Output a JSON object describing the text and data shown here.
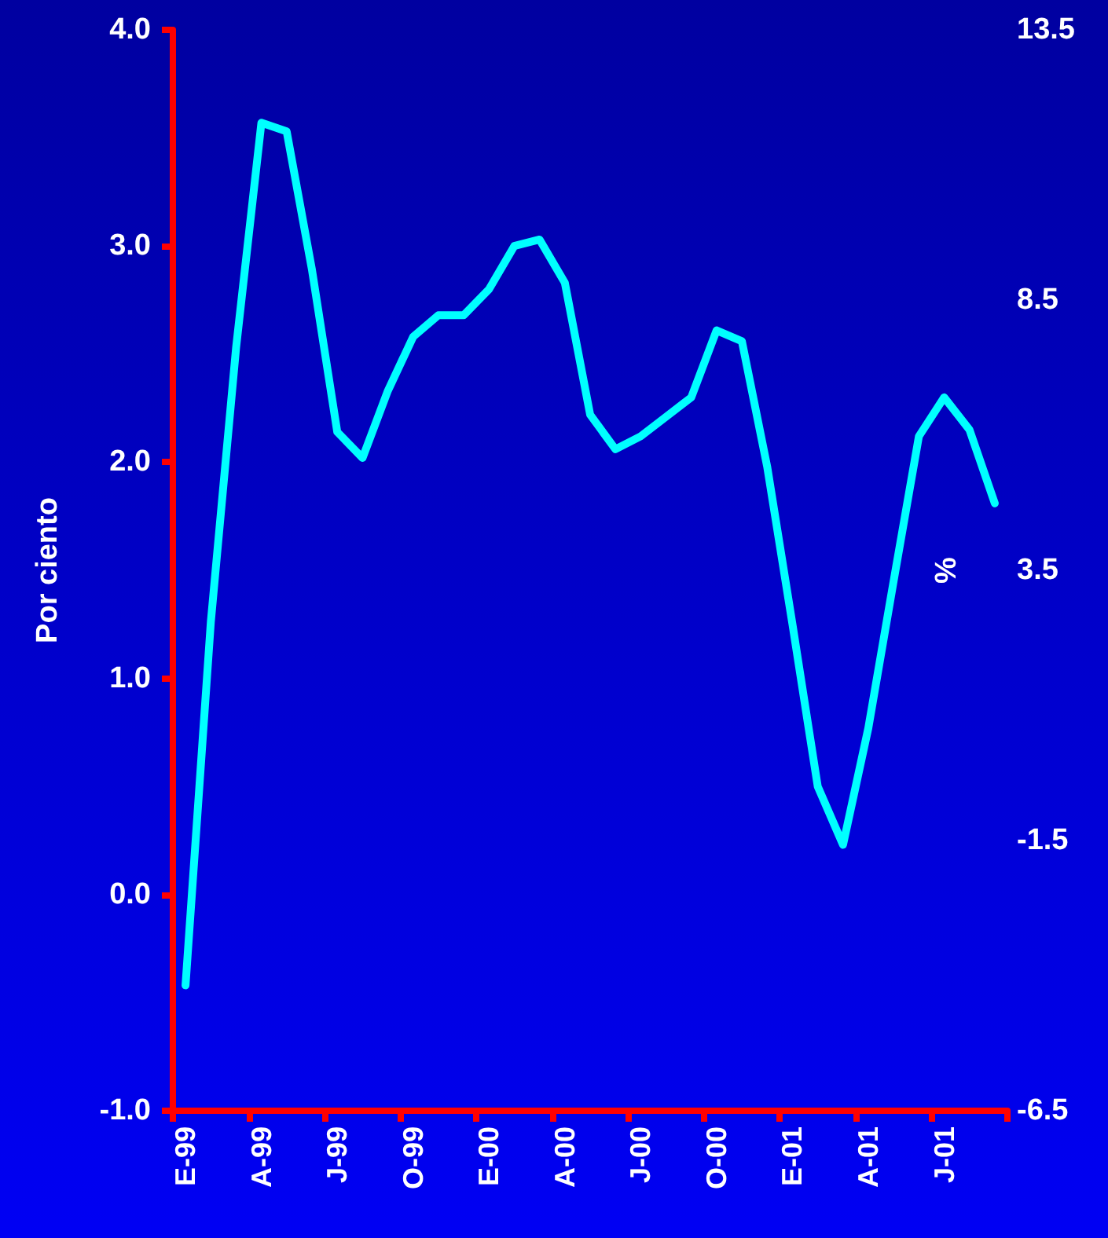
{
  "chart_data": {
    "type": "line",
    "ylabel": "Por ciento",
    "y2label": "%",
    "categories": [
      "E-99",
      null,
      null,
      "A-99",
      null,
      null,
      "J-99",
      null,
      null,
      "O-99",
      null,
      null,
      "E-00",
      null,
      null,
      "A-00",
      null,
      null,
      "J-00",
      null,
      null,
      "O-00",
      null,
      null,
      "E-01",
      null,
      null,
      "A-01",
      null,
      null,
      "J-01",
      null,
      null
    ],
    "series": [
      {
        "color": "#00ffff",
        "values": [
          -0.42,
          1.26,
          2.53,
          3.57,
          3.53,
          2.89,
          2.14,
          2.02,
          2.33,
          2.58,
          2.68,
          2.68,
          2.8,
          3.0,
          3.03,
          2.83,
          2.22,
          2.06,
          2.12,
          2.21,
          2.3,
          2.61,
          2.56,
          1.98,
          1.25,
          0.5,
          0.23,
          0.77,
          1.45,
          2.12,
          2.3,
          2.15,
          1.81
        ]
      }
    ],
    "ylim": [
      -1,
      4
    ],
    "yticks": [
      {
        "value": -1,
        "label": "-1.0"
      },
      {
        "value": 0,
        "label": "0.0"
      },
      {
        "value": 1,
        "label": "1.0"
      },
      {
        "value": 2,
        "label": "2.0"
      },
      {
        "value": 3,
        "label": "3.0"
      },
      {
        "value": 4,
        "label": "4.0"
      }
    ],
    "y2lim": [
      -6.5,
      13.5
    ],
    "y2ticks": [
      -6.5,
      -1.5,
      3.5,
      8.5,
      13.5
    ],
    "grid": false,
    "marker": "none",
    "line_style": "solid"
  }
}
